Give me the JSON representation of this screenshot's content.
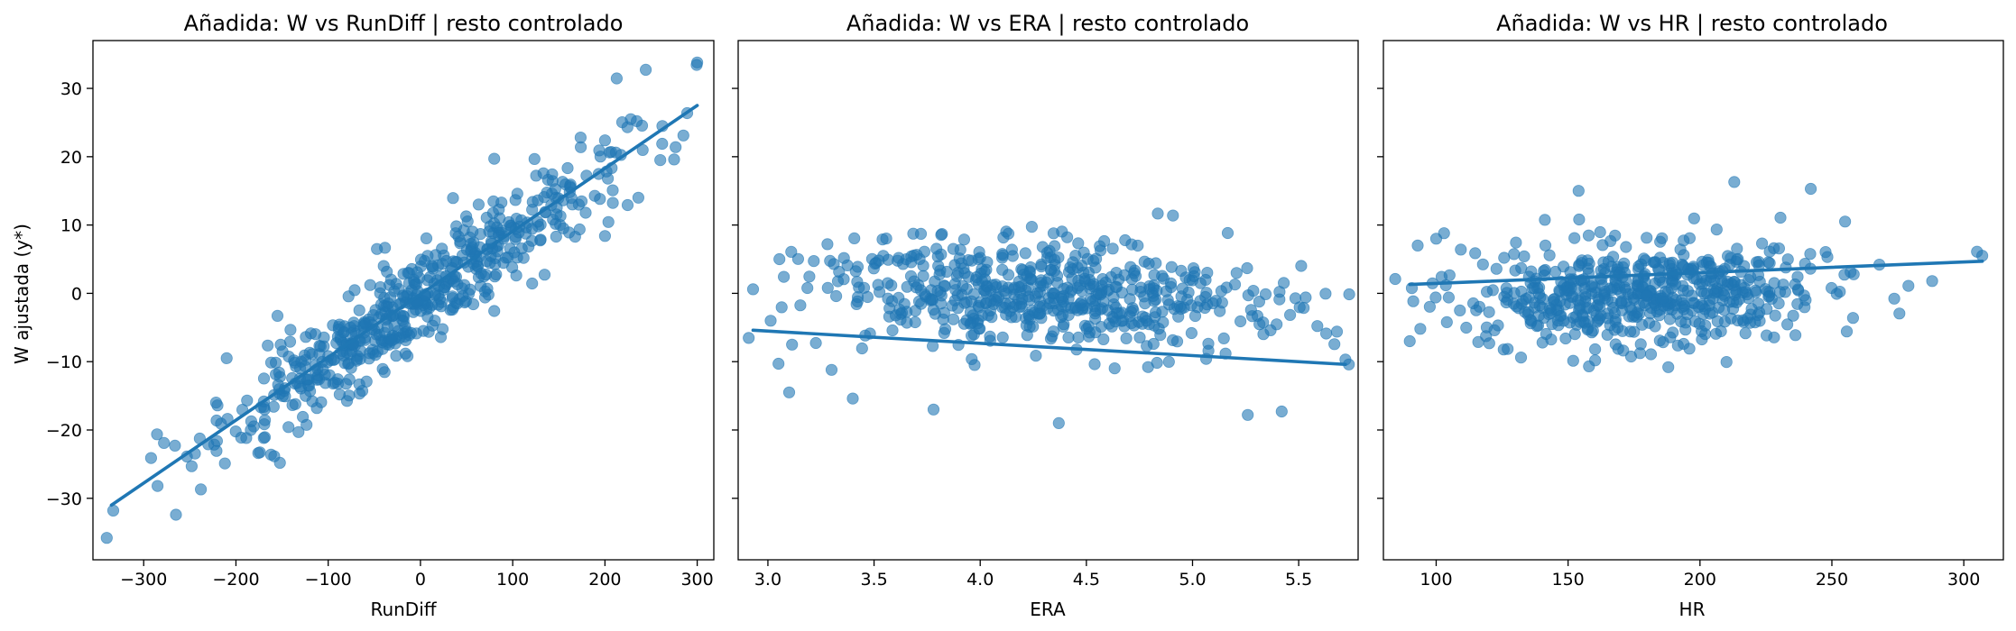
{
  "figure": {
    "ylabel": "W ajustada (y*)",
    "point_color": "#1f77b4",
    "line_color": "#1f77b4"
  },
  "chart_data": [
    {
      "type": "scatter",
      "title": "Añadida: W vs RunDiff | resto controlado",
      "xlabel": "RunDiff",
      "ylabel": "W ajustada (y*)",
      "xlim": [
        -355,
        318
      ],
      "ylim": [
        -39,
        37
      ],
      "xticks": [
        -300,
        -200,
        -100,
        0,
        100,
        200,
        300
      ],
      "xtick_labels": [
        "−300",
        "−200",
        "−100",
        "0",
        "100",
        "200",
        "300"
      ],
      "yticks": [
        -30,
        -20,
        -10,
        0,
        10,
        20,
        30
      ],
      "ytick_labels": [
        "−30",
        "−20",
        "−10",
        "0",
        "10",
        "20",
        "30"
      ],
      "show_yticklabels": true,
      "fit_line": {
        "x": [
          -335,
          300
        ],
        "y": [
          -31,
          27.5
        ]
      },
      "cloud": {
        "n": 560,
        "x_mean": -5,
        "x_sd": 105,
        "slope": 0.092,
        "intercept": -1.0,
        "noise_sd": 3.6,
        "seed": 11
      },
      "extra_points": [
        {
          "x": -340,
          "y": -35.8
        },
        {
          "x": -333,
          "y": -31.8
        },
        {
          "x": -292,
          "y": -24.1
        },
        {
          "x": -285,
          "y": -28.2
        },
        {
          "x": -278,
          "y": -21.9
        },
        {
          "x": -265,
          "y": -32.4
        },
        {
          "x": -248,
          "y": -25.3
        },
        {
          "x": -238,
          "y": -28.7
        },
        {
          "x": -230,
          "y": -22.1
        },
        {
          "x": -220,
          "y": -16.4
        },
        {
          "x": -212,
          "y": -24.9
        },
        {
          "x": -210,
          "y": -9.5
        },
        {
          "x": -155,
          "y": -3.3
        },
        {
          "x": 228,
          "y": 25.5
        },
        {
          "x": 260,
          "y": 19.5
        },
        {
          "x": 275,
          "y": 19.6
        },
        {
          "x": 285,
          "y": 23.1
        },
        {
          "x": 300,
          "y": 33.8
        },
        {
          "x": 80,
          "y": 19.7
        },
        {
          "x": 200,
          "y": 22.4
        },
        {
          "x": 200,
          "y": 8.4
        }
      ]
    },
    {
      "type": "scatter",
      "title": "Añadida: W vs ERA | resto controlado",
      "xlabel": "ERA",
      "ylabel": "",
      "xlim": [
        2.86,
        5.78
      ],
      "ylim": [
        -39,
        37
      ],
      "xticks": [
        3.0,
        3.5,
        4.0,
        4.5,
        5.0,
        5.5
      ],
      "xtick_labels": [
        "3.0",
        "3.5",
        "4.0",
        "4.5",
        "5.0",
        "5.5"
      ],
      "yticks": [
        -30,
        -20,
        -10,
        0,
        10,
        20,
        30
      ],
      "ytick_labels": [
        "−30",
        "−20",
        "−10",
        "0",
        "10",
        "20",
        "30"
      ],
      "show_yticklabels": false,
      "fit_line": {
        "x": [
          2.93,
          5.72
        ],
        "y": [
          -5.4,
          -10.4
        ]
      },
      "cloud": {
        "n": 560,
        "x_mean": 4.25,
        "x_sd": 0.52,
        "slope": -1.8,
        "intercept": -0.2,
        "noise_sd": 3.9,
        "seed": 23
      },
      "extra_points": [
        {
          "x": 2.93,
          "y": 0.6
        },
        {
          "x": 3.05,
          "y": -10.3
        },
        {
          "x": 3.1,
          "y": -14.5
        },
        {
          "x": 3.4,
          "y": -15.4
        },
        {
          "x": 3.3,
          "y": -11.2
        },
        {
          "x": 3.78,
          "y": -17.0
        },
        {
          "x": 4.37,
          "y": -19.0
        },
        {
          "x": 4.0,
          "y": 5.2
        },
        {
          "x": 4.2,
          "y": 3.4
        },
        {
          "x": 4.35,
          "y": 4.9
        },
        {
          "x": 4.82,
          "y": 2.7
        },
        {
          "x": 5.2,
          "y": 1.3
        },
        {
          "x": 5.26,
          "y": -17.8
        },
        {
          "x": 5.42,
          "y": -17.3
        },
        {
          "x": 5.68,
          "y": -5.6
        },
        {
          "x": 5.72,
          "y": -9.7
        }
      ]
    },
    {
      "type": "scatter",
      "title": "Añadida: W vs HR | resto controlado",
      "xlabel": "HR",
      "ylabel": "",
      "xlim": [
        80,
        315
      ],
      "ylim": [
        -39,
        37
      ],
      "xticks": [
        100,
        150,
        200,
        250,
        300
      ],
      "xtick_labels": [
        "100",
        "150",
        "200",
        "250",
        "300"
      ],
      "yticks": [
        -30,
        -20,
        -10,
        0,
        10,
        20,
        30
      ],
      "ytick_labels": [
        "−30",
        "−20",
        "−10",
        "0",
        "10",
        "20",
        "30"
      ],
      "show_yticklabels": false,
      "fit_line": {
        "x": [
          90,
          307
        ],
        "y": [
          1.3,
          4.7
        ]
      },
      "cloud": {
        "n": 560,
        "x_mean": 180,
        "x_sd": 33,
        "slope": 0.016,
        "intercept": -0.1,
        "noise_sd": 3.7,
        "seed": 37
      },
      "extra_points": [
        {
          "x": 90,
          "y": -7.0
        },
        {
          "x": 94,
          "y": -5.2
        },
        {
          "x": 93,
          "y": 7.0
        },
        {
          "x": 100,
          "y": 8.0
        },
        {
          "x": 103,
          "y": 8.8
        },
        {
          "x": 154,
          "y": 15.0
        },
        {
          "x": 213,
          "y": 16.3
        },
        {
          "x": 242,
          "y": 15.3
        },
        {
          "x": 196,
          "y": -8.1
        },
        {
          "x": 268,
          "y": 4.2
        },
        {
          "x": 279,
          "y": 1.1
        },
        {
          "x": 288,
          "y": 1.8
        },
        {
          "x": 305,
          "y": 6.1
        },
        {
          "x": 307,
          "y": 5.5
        },
        {
          "x": 255,
          "y": 10.5
        },
        {
          "x": 258,
          "y": -3.6
        }
      ]
    }
  ]
}
